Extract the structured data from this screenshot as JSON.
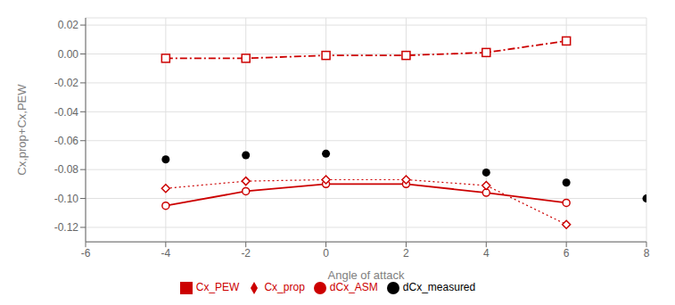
{
  "chart_data": {
    "type": "line",
    "xlabel": "Angle of attack",
    "ylabel": "Cx,prop+Cx,PEW",
    "xlim": [
      -6,
      8
    ],
    "ylim": [
      -0.13,
      0.025
    ],
    "xticks": [
      -6,
      -4,
      -2,
      0,
      2,
      4,
      6,
      8
    ],
    "yticks": [
      0.02,
      {
        "value": 0.0,
        "label": "0.00"
      },
      -0.02,
      -0.04,
      -0.06,
      -0.08,
      {
        "value": -0.1,
        "label": "-0.10"
      },
      -0.12
    ],
    "grid": true,
    "legend": "bottom",
    "series": [
      {
        "name": "dCx_ASM",
        "type": "line",
        "color": "#cc0000",
        "marker": "open_circle",
        "line_style": "solid",
        "x": [
          -4,
          -2,
          0,
          2,
          4,
          6
        ],
        "values": [
          -0.105,
          -0.095,
          -0.09,
          -0.09,
          -0.096,
          -0.103
        ]
      },
      {
        "name": "Cx_prop",
        "type": "line",
        "color": "#cc0000",
        "marker": "open_diamond",
        "line_style": "dotted",
        "x": [
          -4,
          -2,
          0,
          2,
          4,
          6
        ],
        "values": [
          -0.093,
          -0.088,
          -0.087,
          -0.087,
          -0.091,
          -0.118
        ]
      },
      {
        "name": "Cx_PEW",
        "type": "line",
        "color": "#cc0000",
        "marker": "open_square",
        "line_style": "dashdot",
        "x": [
          -4,
          -2,
          0,
          2,
          4,
          6
        ],
        "values": [
          -0.003,
          -0.003,
          -0.001,
          -0.001,
          0.001,
          0.009
        ]
      },
      {
        "name": "dCx_measured",
        "type": "scatter",
        "color": "black",
        "marker": "circle",
        "line_style": "none",
        "x": [
          -4,
          -2,
          0,
          4,
          6,
          8
        ],
        "values": [
          -0.073,
          -0.07,
          -0.069,
          -0.082,
          -0.089,
          -0.1
        ]
      }
    ]
  }
}
